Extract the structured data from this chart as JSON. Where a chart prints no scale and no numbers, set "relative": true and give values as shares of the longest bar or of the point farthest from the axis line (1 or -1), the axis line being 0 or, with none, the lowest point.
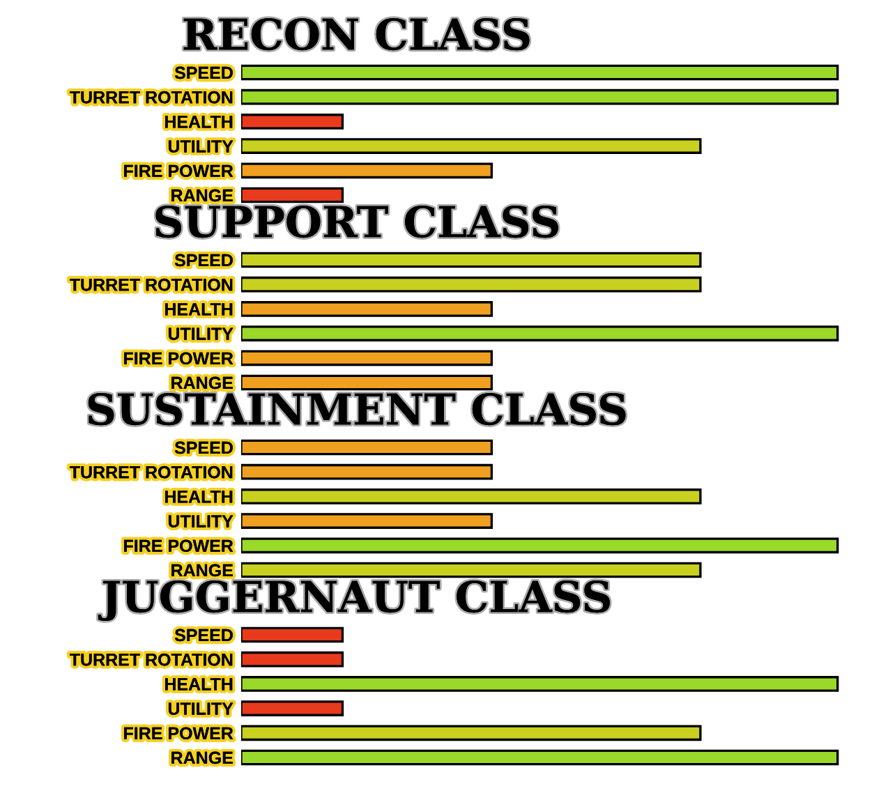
{
  "chart_data": [
    {
      "type": "bar",
      "orientation": "horizontal",
      "relative": true,
      "tick_labels": "y",
      "title": "RECON CLASS",
      "categories": [
        "SPEED",
        "TURRET ROTATION",
        "HEALTH",
        "UTILITY",
        "FIRE POWER",
        "RANGE"
      ],
      "values": [
        1,
        1,
        0.17,
        0.77,
        0.42,
        0.17
      ],
      "colors": [
        "#9ad82a",
        "#9ad82a",
        "#e83a1c",
        "#c8d020",
        "#f0a020",
        "#e83a1c"
      ]
    },
    {
      "type": "bar",
      "orientation": "horizontal",
      "relative": true,
      "tick_labels": "y",
      "title": "SUPPORT CLASS",
      "categories": [
        "SPEED",
        "TURRET ROTATION",
        "HEALTH",
        "UTILITY",
        "FIRE POWER",
        "RANGE"
      ],
      "values": [
        0.77,
        0.77,
        0.42,
        1,
        0.42,
        0.42
      ],
      "colors": [
        "#c8d020",
        "#c8d020",
        "#f0a020",
        "#9ad82a",
        "#f0a020",
        "#f0a020"
      ]
    },
    {
      "type": "bar",
      "orientation": "horizontal",
      "relative": true,
      "tick_labels": "y",
      "title": "SUSTAINMENT CLASS",
      "categories": [
        "SPEED",
        "TURRET ROTATION",
        "HEALTH",
        "UTILITY",
        "FIRE POWER",
        "RANGE"
      ],
      "values": [
        0.42,
        0.42,
        0.77,
        0.42,
        1,
        0.77
      ],
      "colors": [
        "#f0a020",
        "#f0a020",
        "#c8d020",
        "#f0a020",
        "#9ad82a",
        "#c8d020"
      ]
    },
    {
      "type": "bar",
      "orientation": "horizontal",
      "relative": true,
      "tick_labels": "y",
      "title": "JUGGERNAUT CLASS",
      "categories": [
        "SPEED",
        "TURRET ROTATION",
        "HEALTH",
        "UTILITY",
        "FIRE POWER",
        "RANGE"
      ],
      "values": [
        0.17,
        0.17,
        1,
        0.17,
        0.77,
        1
      ],
      "colors": [
        "#e83a1c",
        "#e83a1c",
        "#9ad82a",
        "#e83a1c",
        "#c8d020",
        "#9ad82a"
      ]
    }
  ]
}
